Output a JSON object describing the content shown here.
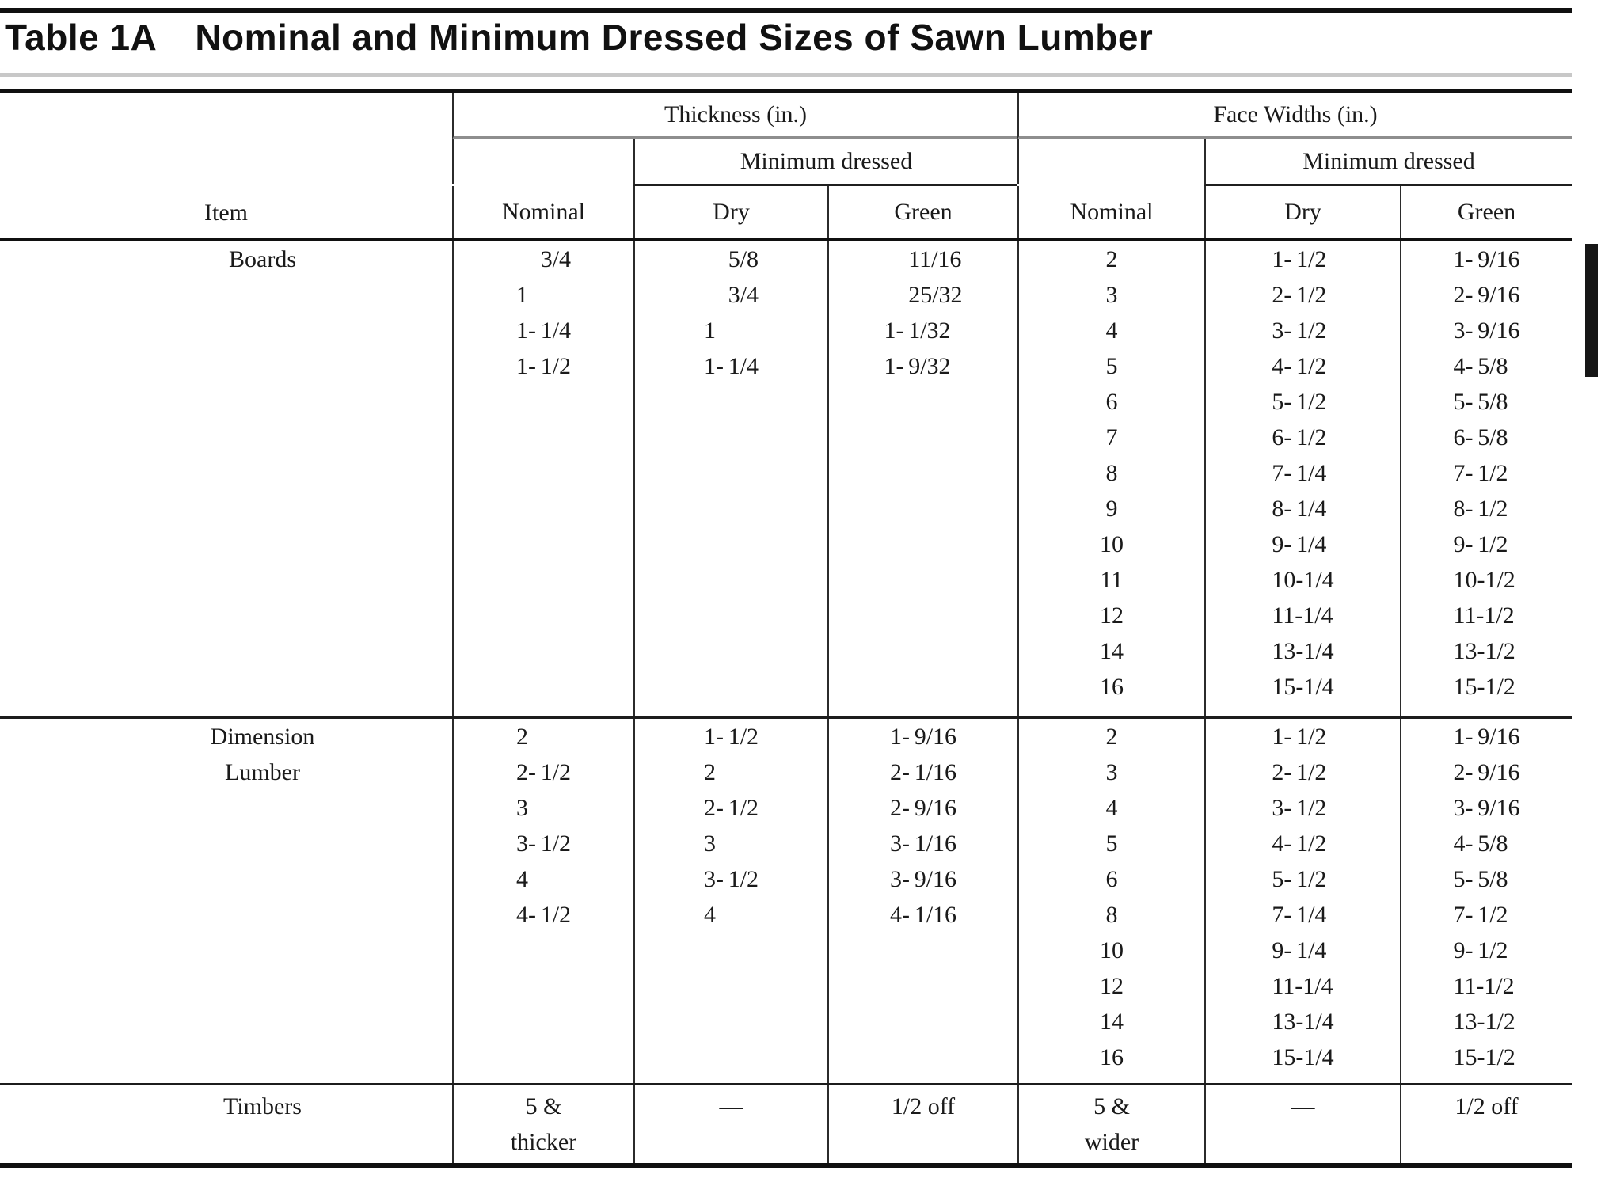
{
  "title": {
    "label": "Table 1A",
    "text": "Nominal and Minimum Dressed Sizes of Sawn Lumber"
  },
  "colors": {
    "ink": "#1a1a1a",
    "rule_dark": "#101010",
    "rule_mid": "#2b2b2b",
    "group_underline": "#8e8e8e",
    "title_underline": "#c8c8c8",
    "change_bar": "#161616",
    "background": "#ffffff"
  },
  "header": {
    "item_label": "Item",
    "groups": [
      {
        "label": "Thickness (in.)",
        "nominal": "Nominal",
        "min_dressed": "Minimum dressed",
        "dry": "Dry",
        "green": "Green"
      },
      {
        "label": "Face Widths (in.)",
        "nominal": "Nominal",
        "min_dressed": "Minimum dressed",
        "dry": "Dry",
        "green": "Green"
      }
    ]
  },
  "sections": [
    {
      "item_lines": [
        "Boards"
      ],
      "thickness": {
        "nominal": [
          "3/4",
          "1",
          "1-1/4",
          "1-1/2"
        ],
        "dry": [
          "5/8",
          "3/4",
          "1",
          "1-1/4"
        ],
        "green": [
          "11/16",
          "25/32",
          "1-1/32",
          "1-9/32"
        ]
      },
      "face": {
        "nominal": [
          "2",
          "3",
          "4",
          "5",
          "6",
          "7",
          "8",
          "9",
          "10",
          "11",
          "12",
          "14",
          "16"
        ],
        "dry": [
          "1-1/2",
          "2-1/2",
          "3-1/2",
          "4-1/2",
          "5-1/2",
          "6-1/2",
          "7-1/4",
          "8-1/4",
          "9-1/4",
          "10-1/4",
          "11-1/4",
          "13-1/4",
          "15-1/4"
        ],
        "green": [
          "1-9/16",
          "2-9/16",
          "3-9/16",
          "4-5/8",
          "5-5/8",
          "6-5/8",
          "7-1/2",
          "8-1/2",
          "9-1/2",
          "10-1/2",
          "11-1/2",
          "13-1/2",
          "15-1/2"
        ]
      }
    },
    {
      "item_lines": [
        "Dimension",
        "Lumber"
      ],
      "thickness": {
        "nominal": [
          "2",
          "2-1/2",
          "3",
          "3-1/2",
          "4",
          "4-1/2"
        ],
        "dry": [
          "1-1/2",
          "2",
          "2-1/2",
          "3",
          "3-1/2",
          "4"
        ],
        "green": [
          "1-9/16",
          "2-1/16",
          "2-9/16",
          "3-1/16",
          "3-9/16",
          "4-1/16"
        ]
      },
      "face": {
        "nominal": [
          "2",
          "3",
          "4",
          "5",
          "6",
          "8",
          "10",
          "12",
          "14",
          "16"
        ],
        "dry": [
          "1-1/2",
          "2-1/2",
          "3-1/2",
          "4-1/2",
          "5-1/2",
          "7-1/4",
          "9-1/4",
          "11-1/4",
          "13-1/4",
          "15-1/4"
        ],
        "green": [
          "1-9/16",
          "2-9/16",
          "3-9/16",
          "4-5/8",
          "5-5/8",
          "7-1/2",
          "9-1/2",
          "11-1/2",
          "13-1/2",
          "15-1/2"
        ]
      }
    },
    {
      "item_lines": [
        "Timbers"
      ],
      "thickness": {
        "nominal": [
          "5 &",
          "thicker"
        ],
        "dry": [
          "—"
        ],
        "green": [
          "1/2 off"
        ]
      },
      "face": {
        "nominal": [
          "5 &",
          "wider"
        ],
        "dry": [
          "—"
        ],
        "green": [
          "1/2 off"
        ]
      }
    }
  ]
}
